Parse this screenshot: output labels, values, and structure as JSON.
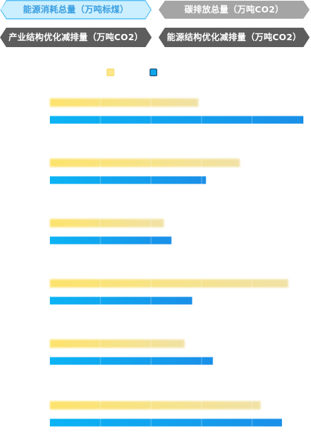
{
  "tabs": [
    {
      "label": "能源消耗总量（万吨标煤）",
      "state": "active"
    },
    {
      "label": "碳排放总量（万吨CO2）",
      "state": "inactive"
    },
    {
      "label": "产业结构优化减排量（万吨CO2）",
      "state": "inactive"
    },
    {
      "label": "能源结构优化减排量（万吨CO2）",
      "state": "inactive"
    }
  ],
  "legend": {
    "series_a_color": "#fde68a",
    "series_b_color": "#0ea5e9"
  },
  "chart_data": {
    "type": "bar",
    "orientation": "horizontal",
    "categories": [
      "",
      "",
      "",
      "",
      "",
      ""
    ],
    "series": [
      {
        "color": "#fde68a",
        "values": [
          215,
          275,
          165,
          345,
          195,
          305
        ]
      },
      {
        "color": "#0ea5e9",
        "values": [
          367,
          226,
          176,
          206,
          236,
          336
        ]
      }
    ],
    "xlim": [
      0,
      367
    ],
    "grid": true
  }
}
